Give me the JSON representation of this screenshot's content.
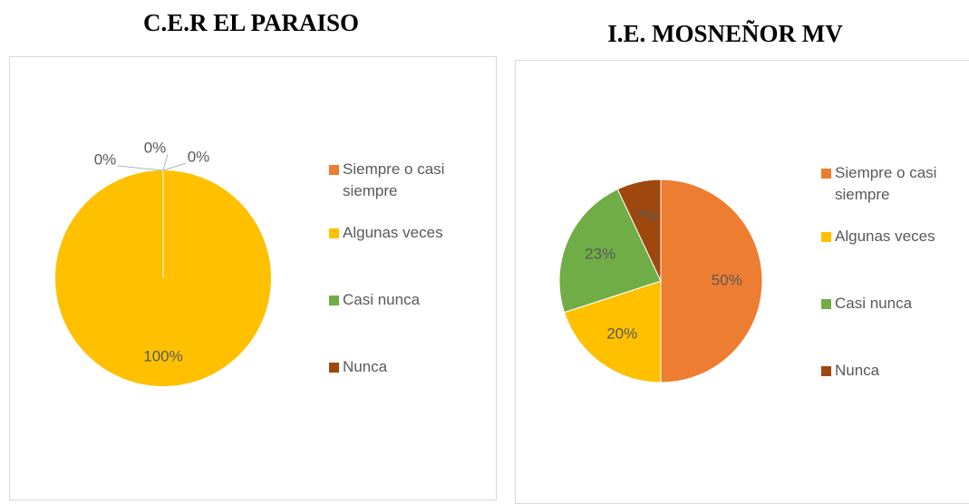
{
  "chart_data": [
    {
      "type": "pie",
      "title": "C.E.R EL PARAISO",
      "categories": [
        "Siempre o casi siempre",
        "Algunas veces",
        "Casi nunca",
        "Nunca"
      ],
      "values": [
        0,
        100,
        0,
        0
      ],
      "value_labels": [
        "0%",
        "100%",
        "0%",
        "0%"
      ],
      "colors": [
        "#ed7d31",
        "#ffc000",
        "#70ad47",
        "#9e480e"
      ]
    },
    {
      "type": "pie",
      "title": "I.E. MOSNEÑOR MV",
      "categories": [
        "Siempre o casi siempre",
        "Algunas veces",
        "Casi nunca",
        "Nunca"
      ],
      "values": [
        50,
        20,
        23,
        7
      ],
      "value_labels": [
        "50%",
        "20%",
        "23%",
        "7%"
      ],
      "colors": [
        "#ed7d31",
        "#ffc000",
        "#70ad47",
        "#9e480e"
      ]
    }
  ]
}
